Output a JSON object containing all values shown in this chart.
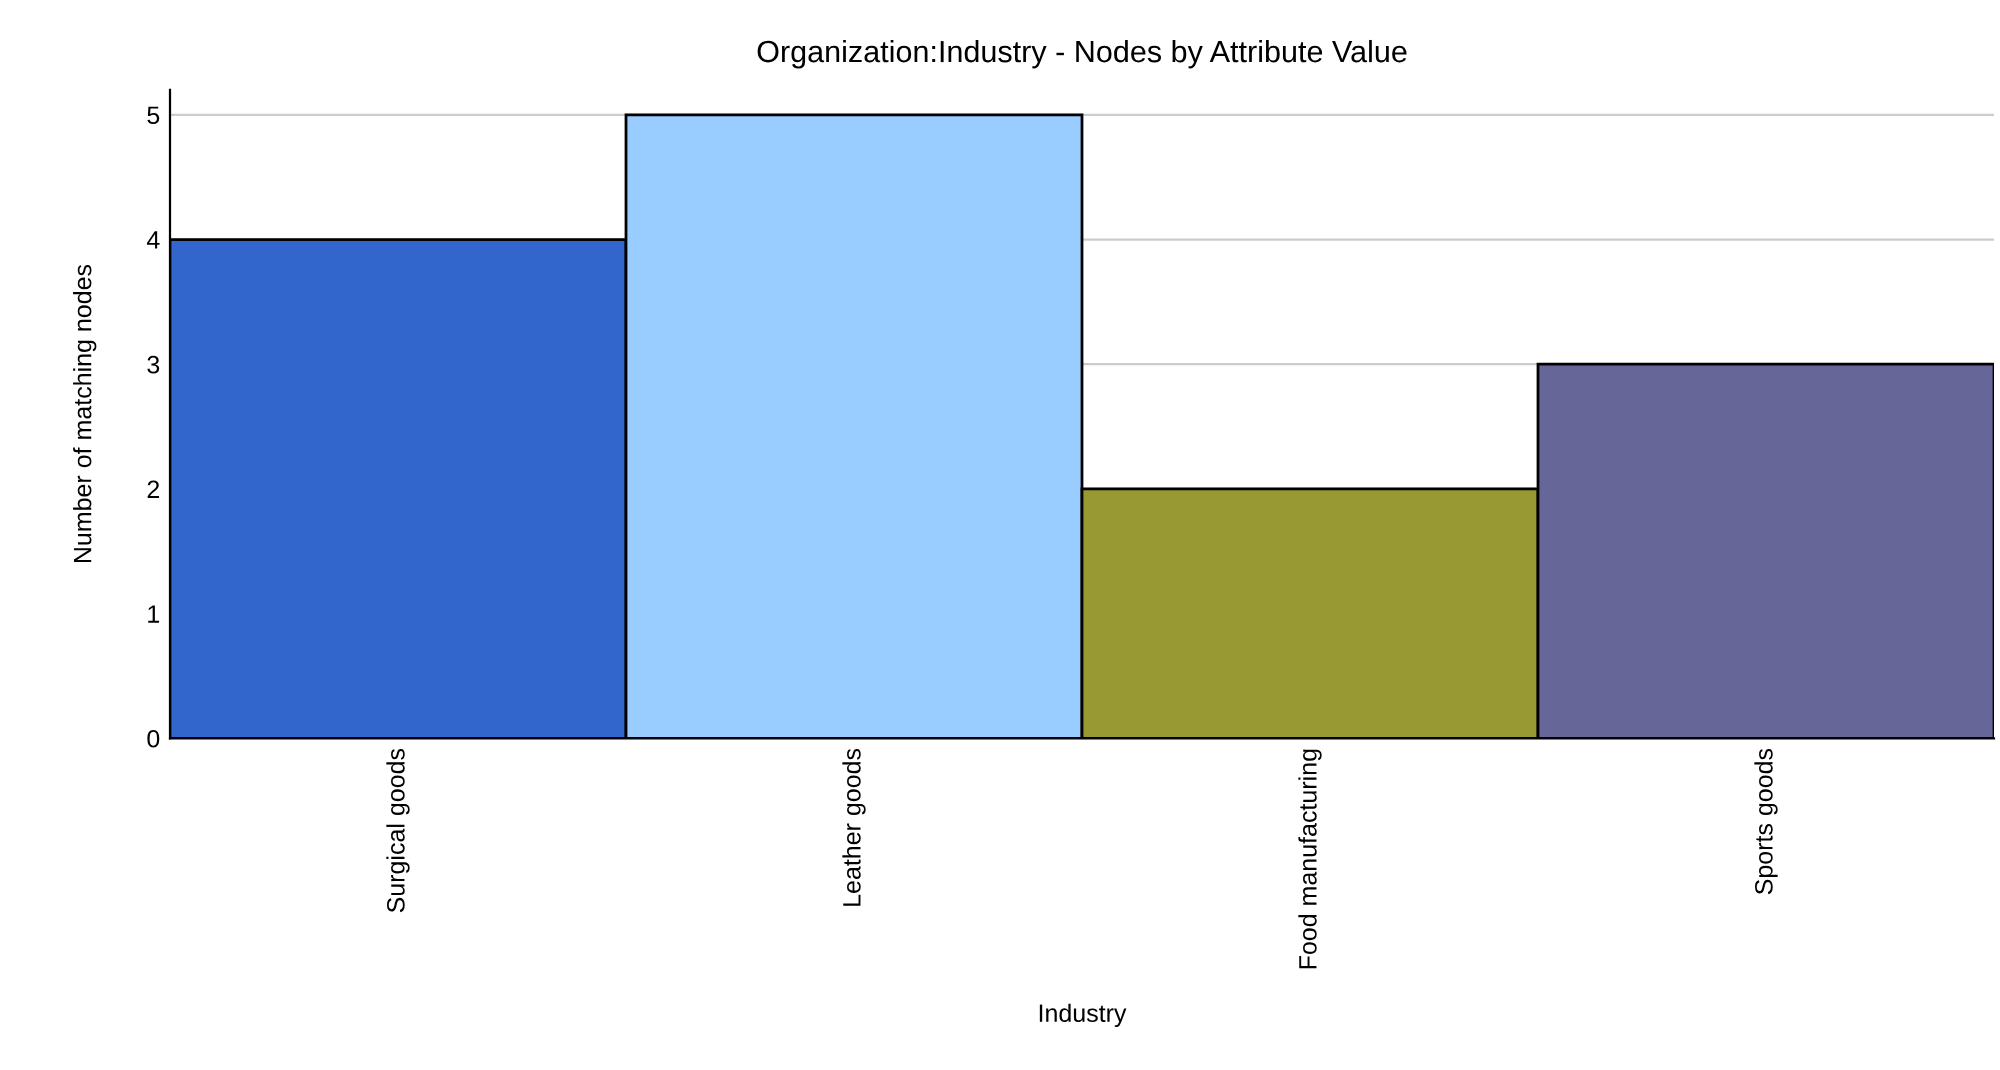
{
  "chart_data": {
    "type": "bar",
    "title": "Organization:Industry - Nodes by Attribute Value",
    "xlabel": "Industry",
    "ylabel": "Number of matching nodes",
    "categories": [
      "Surgical goods",
      "Leather goods",
      "Food manufacturing",
      "Sports goods"
    ],
    "values": [
      4,
      5,
      2,
      3
    ],
    "colors": [
      "#3366cc",
      "#99ccff",
      "#999933",
      "#666699"
    ],
    "ylim": [
      0,
      5.2
    ],
    "yticks": [
      0,
      1,
      2,
      3,
      4,
      5
    ],
    "grid": "y",
    "legend": false
  }
}
